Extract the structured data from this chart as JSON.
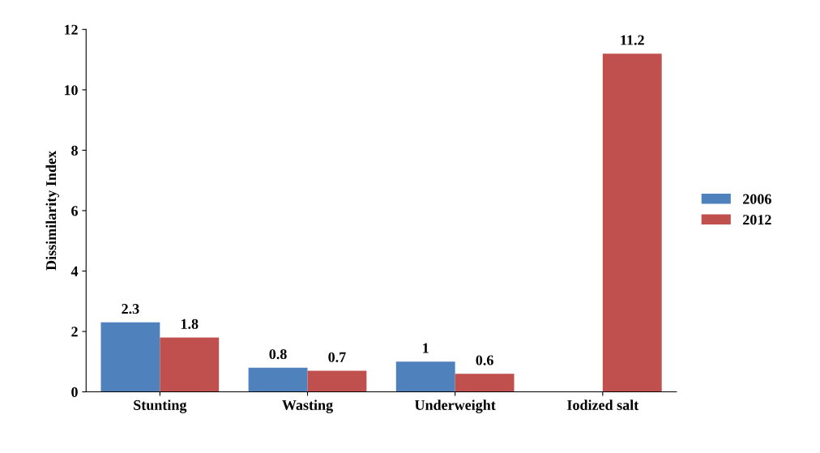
{
  "chart_data": {
    "type": "bar",
    "ylabel": "Dissimilarity Index",
    "categories": [
      "Stunting",
      "Wasting",
      "Underweight",
      "Iodized salt"
    ],
    "series": [
      {
        "name": "2006",
        "color": "#4f81bd",
        "values": [
          2.3,
          0.8,
          1,
          null
        ]
      },
      {
        "name": "2012",
        "color": "#c0504d",
        "values": [
          1.8,
          0.7,
          0.6,
          11.2
        ]
      }
    ],
    "ylim": [
      0,
      12
    ],
    "yticks": [
      0,
      2,
      4,
      6,
      8,
      10,
      12
    ],
    "data_labels": true,
    "legend": "right",
    "grid": false
  }
}
